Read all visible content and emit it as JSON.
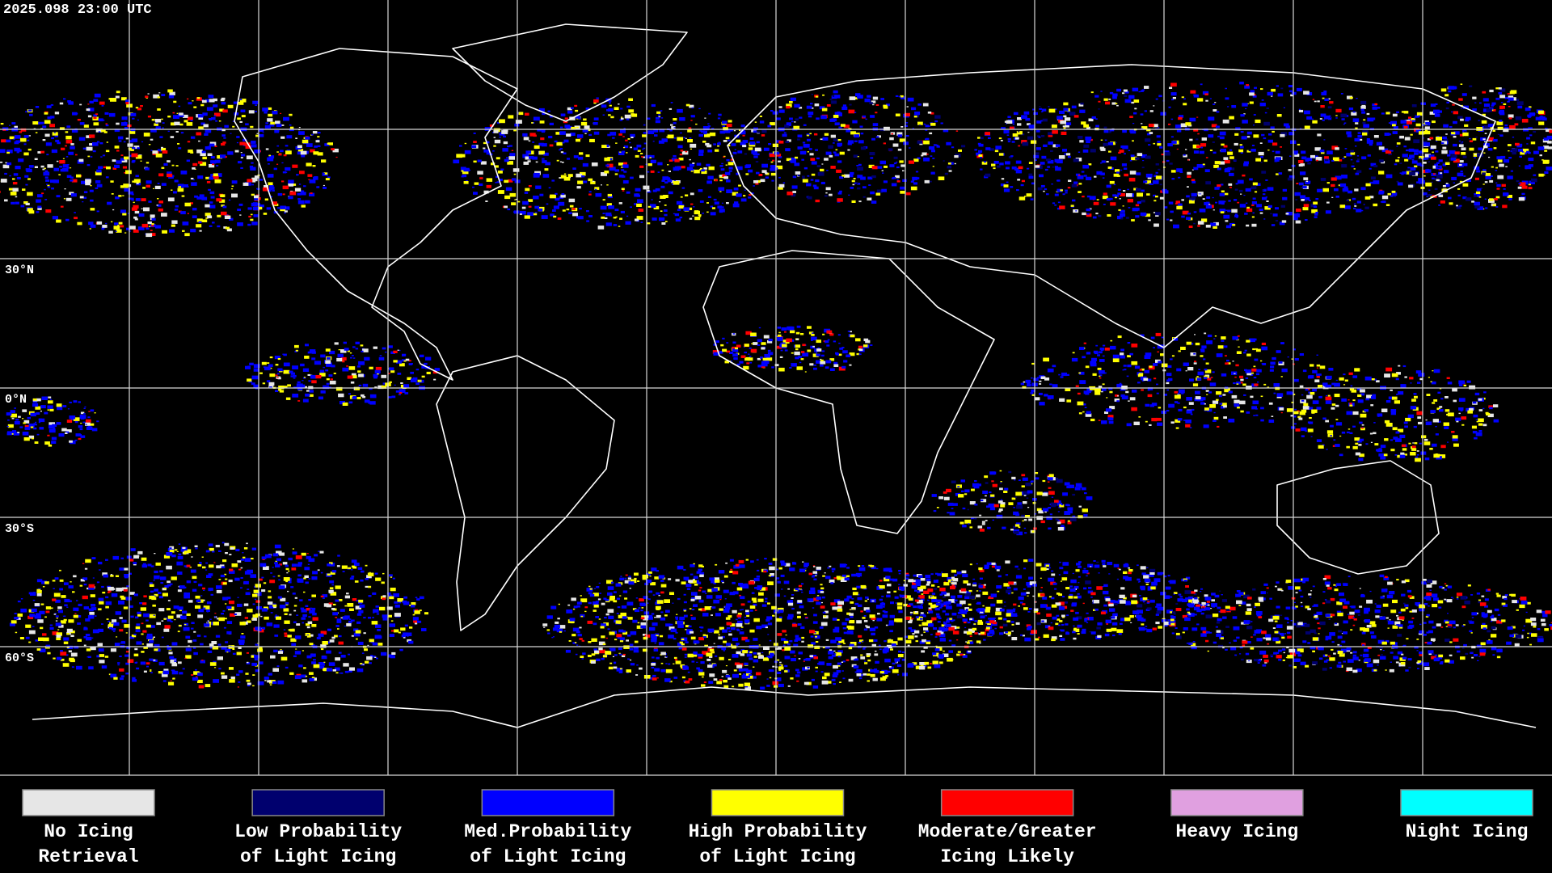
{
  "header": {
    "timestamp": "2025.098 23:00 UTC"
  },
  "lat_labels": [
    "30°N",
    "0°N",
    "30°S",
    "60°S"
  ],
  "legend": [
    {
      "label": [
        "No Icing",
        "Retrieval"
      ],
      "color": "#e6e6e6"
    },
    {
      "label": [
        "Low Probability",
        "of Light Icing"
      ],
      "color": "#00006e"
    },
    {
      "label": [
        "Med.Probability",
        "of Light Icing"
      ],
      "color": "#0000ff"
    },
    {
      "label": [
        "High Probability",
        "of Light Icing"
      ],
      "color": "#ffff00"
    },
    {
      "label": [
        "Moderate/Greater",
        "Icing Likely"
      ],
      "color": "#ff0000"
    },
    {
      "label": [
        "Heavy Icing"
      ],
      "color": "#e0a0e0"
    },
    {
      "label": [
        "Night Icing"
      ],
      "color": "#00ffff"
    }
  ]
}
